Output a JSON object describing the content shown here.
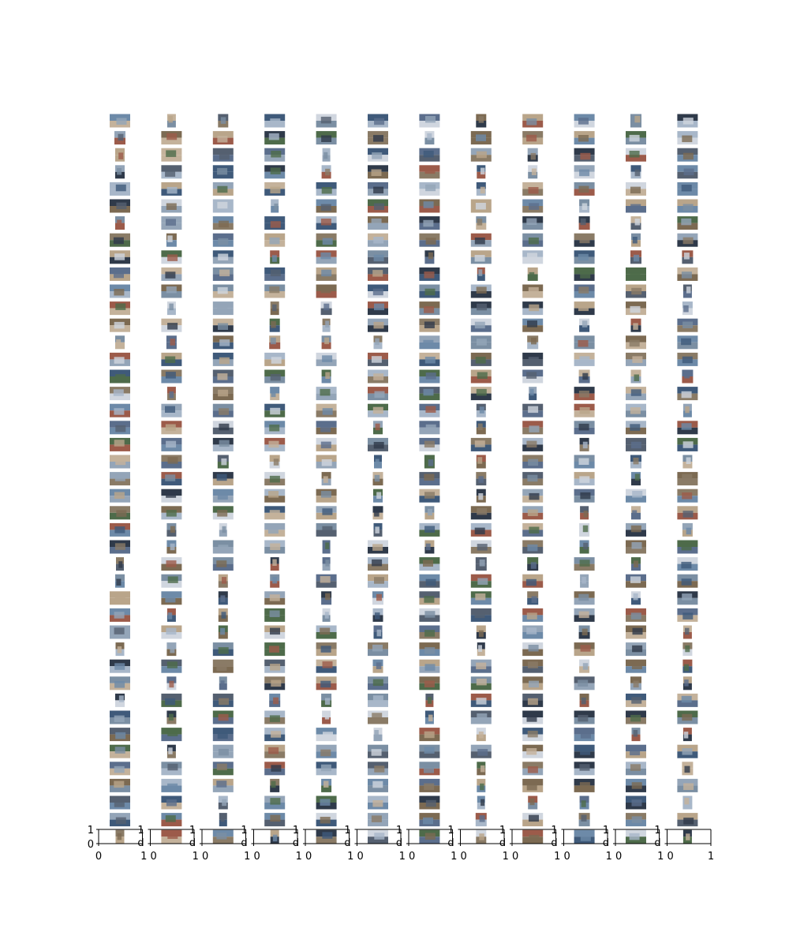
{
  "figure": {
    "description_kind": "grid of image thumbnails above a row of empty matplotlib axes",
    "columns": 12,
    "rows": 43,
    "thumbnail_palette": [
      "#5b6e8c",
      "#8a7b66",
      "#3f5a7a",
      "#b9a58a",
      "#6d8aa8",
      "#2f3a4a",
      "#a8b7c9",
      "#7c6a52",
      "#4e6b4a",
      "#c4b29b",
      "#94a5b8",
      "#556070",
      "#9c5b4a",
      "#7b8fa3",
      "#d0d6df"
    ],
    "thumbnail_frame_color": "#dfe4ea"
  },
  "axes_row": {
    "count": 12,
    "first_y_ticks": [
      "1",
      "0"
    ],
    "tick_label_zero": "0",
    "tick_label_one": "1",
    "tick_label_one_zero": "1 0",
    "tick_label_last": "1",
    "overlap_glyph_top": "1",
    "overlap_glyph_bottom": "d"
  }
}
